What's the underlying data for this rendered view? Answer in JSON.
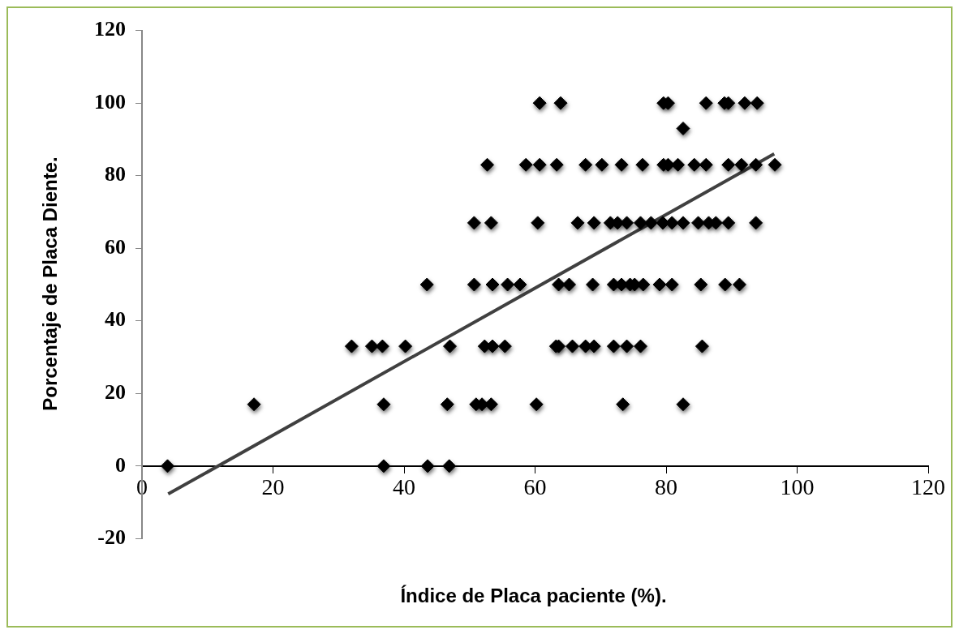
{
  "chart_data": {
    "type": "scatter",
    "xlabel": "Índice de Placa paciente (%).",
    "ylabel": "Porcentaje de Placa Diente.",
    "xlim": [
      0,
      120
    ],
    "xticks": [
      0,
      20,
      40,
      60,
      80,
      100,
      120
    ],
    "ylim": [
      -20,
      120
    ],
    "yticks": [
      -20,
      0,
      20,
      40,
      60,
      80,
      100,
      120
    ],
    "grid": false,
    "legend": false,
    "series": [
      {
        "type": "scatter",
        "color": "#000000",
        "marker": "diamond",
        "x": [
          3.9,
          36.9,
          43.6,
          46.9,
          17.1,
          36.9,
          46.6,
          51.0,
          51.9,
          53.3,
          60.2,
          73.4,
          82.6,
          32.0,
          35.1,
          36.7,
          40.2,
          47.0,
          52.3,
          53.5,
          55.4,
          63.2,
          63.6,
          65.7,
          67.7,
          69.0,
          72.0,
          74.0,
          76.1,
          85.5,
          43.5,
          50.7,
          53.5,
          55.8,
          57.7,
          63.6,
          65.2,
          68.8,
          72.0,
          73.2,
          74.5,
          75.2,
          76.5,
          79.0,
          80.9,
          85.3,
          89.0,
          91.2,
          50.7,
          53.3,
          60.4,
          66.5,
          69.0,
          71.5,
          72.6,
          74.0,
          76.1,
          77.7,
          79.5,
          80.9,
          82.6,
          84.9,
          86.5,
          87.6,
          89.5,
          93.7,
          52.7,
          58.6,
          60.7,
          63.3,
          67.7,
          70.2,
          73.2,
          76.4,
          79.6,
          80.3,
          81.8,
          84.3,
          86.1,
          89.5,
          91.5,
          93.7,
          96.6,
          82.6,
          60.7,
          63.9,
          79.6,
          80.3,
          86.1,
          88.9,
          89.5,
          92.0,
          93.9
        ],
        "values": [
          0,
          0,
          0,
          0,
          17,
          17,
          17,
          17,
          17,
          17,
          17,
          17,
          17,
          33,
          33,
          33,
          33,
          33,
          33,
          33,
          33,
          33,
          33,
          33,
          33,
          33,
          33,
          33,
          33,
          33,
          50,
          50,
          50,
          50,
          50,
          50,
          50,
          50,
          50,
          50,
          50,
          50,
          50,
          50,
          50,
          50,
          50,
          50,
          67,
          67,
          67,
          67,
          67,
          67,
          67,
          67,
          67,
          67,
          67,
          67,
          67,
          67,
          67,
          67,
          67,
          67,
          83,
          83,
          83,
          83,
          83,
          83,
          83,
          83,
          83,
          83,
          83,
          83,
          83,
          83,
          83,
          83,
          83,
          93,
          100,
          100,
          100,
          100,
          100,
          100,
          100,
          100,
          100
        ]
      },
      {
        "type": "line",
        "color": "#404040",
        "x": [
          4,
          96.5
        ],
        "values": [
          -7.7,
          86
        ]
      }
    ]
  }
}
